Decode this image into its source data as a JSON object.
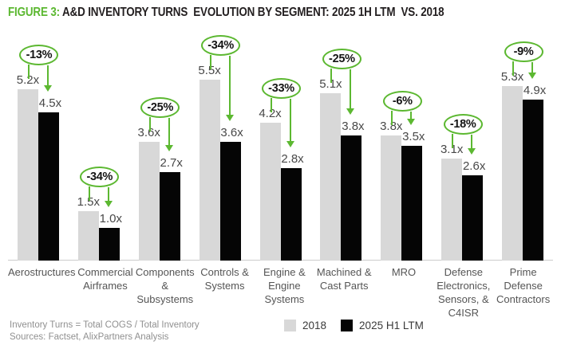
{
  "title": {
    "figure_label": "FIGURE 3:",
    "text": " A&D INVENTORY TURNS  EVOLUTION BY SEGMENT: 2025 1H LTM  VS. 2018"
  },
  "chart_data": {
    "type": "bar",
    "title": "A&D INVENTORY TURNS EVOLUTION BY SEGMENT: 2025 1H LTM VS. 2018",
    "categories": [
      "Aerostructures",
      "Commercial Airframes",
      "Components & Subsystems",
      "Controls & Systems",
      "Engine & Engine Systems",
      "Machined & Cast Parts",
      "MRO",
      "Defense Electronics, Sensors, & C4ISR",
      "Prime Defense Contractors"
    ],
    "category_label_lines": [
      [
        "Aerostructures"
      ],
      [
        "Commercial",
        "Airframes"
      ],
      [
        "Components",
        "&",
        "Subsystems"
      ],
      [
        "Controls &",
        "Systems"
      ],
      [
        "Engine &",
        "Engine",
        "Systems"
      ],
      [
        "Machined &",
        "Cast Parts"
      ],
      [
        "MRO"
      ],
      [
        "Defense",
        "Electronics,",
        "Sensors, &",
        "C4ISR"
      ],
      [
        "Prime",
        "Defense",
        "Contractors"
      ]
    ],
    "series": [
      {
        "name": "2018",
        "color": "#d8d8d8",
        "values": [
          5.2,
          1.5,
          3.6,
          5.5,
          4.2,
          5.1,
          3.8,
          3.1,
          5.3
        ]
      },
      {
        "name": "2025 H1 LTM",
        "color": "#050505",
        "values": [
          4.5,
          1.0,
          2.7,
          3.6,
          2.8,
          3.8,
          3.5,
          2.6,
          4.9
        ]
      }
    ],
    "value_suffix": "x",
    "change_labels": [
      "-13%",
      "-34%",
      "-25%",
      "-34%",
      "-33%",
      "-25%",
      "-6%",
      "-18%",
      "-9%"
    ],
    "ylim": [
      0,
      5.5
    ],
    "grid": false,
    "legend": [
      "2018",
      "2025 H1 LTM"
    ],
    "legend_position": "bottom",
    "accent_green": "#5cb831"
  },
  "footer": {
    "note": "Inventory Turns = Total COGS / Total Inventory",
    "sources": "Sources: Factset, AlixPartners Analysis"
  }
}
